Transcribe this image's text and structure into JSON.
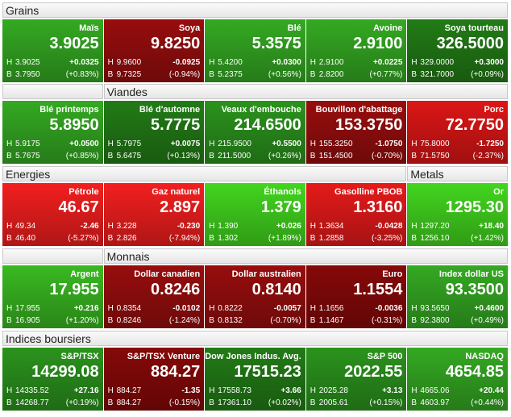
{
  "labels": {
    "high": "H",
    "low": "B"
  },
  "rows": [
    {
      "headers": [
        "Grains"
      ],
      "tiles": [
        {
          "name": "Maïs",
          "price": "3.9025",
          "high": "3.9025",
          "change": "+0.0325",
          "low": "3.7950",
          "pct": "(+0.83%)",
          "color": "#2f9a1f"
        },
        {
          "name": "Soya",
          "price": "9.8250",
          "high": "9.9600",
          "change": "-0.0925",
          "low": "9.7325",
          "pct": "(-0.94%)",
          "color": "#8a0c0c"
        },
        {
          "name": "Blé",
          "price": "5.3575",
          "high": "5.4200",
          "change": "+0.0300",
          "low": "5.2375",
          "pct": "(+0.56%)",
          "color": "#2f9a1f"
        },
        {
          "name": "Avoine",
          "price": "2.9100",
          "high": "2.9100",
          "change": "+0.0225",
          "low": "2.8200",
          "pct": "(+0.77%)",
          "color": "#2f9a1f"
        },
        {
          "name": "Soya tourteau",
          "price": "326.5000",
          "high": "329.0000",
          "change": "+0.3000",
          "low": "321.7000",
          "pct": "(+0.09%)",
          "color": "#1f7014"
        }
      ]
    },
    {
      "headers": [
        "Viandes"
      ],
      "tiles": [
        {
          "name": "Blé printemps",
          "price": "5.8950",
          "high": "5.9175",
          "change": "+0.0500",
          "low": "5.7675",
          "pct": "(+0.85%)",
          "color": "#2f9a1f"
        },
        {
          "name": "Blé d'automne",
          "price": "5.7775",
          "high": "5.7975",
          "change": "+0.0075",
          "low": "5.6475",
          "pct": "(+0.13%)",
          "color": "#1f7014"
        },
        {
          "name": "Veaux d'embouche",
          "price": "214.6500",
          "high": "215.9500",
          "change": "+0.5500",
          "low": "211.5000",
          "pct": "(+0.26%)",
          "color": "#27861a"
        },
        {
          "name": "Bouvillon d'abattage",
          "price": "153.3750",
          "high": "155.3250",
          "change": "-1.0750",
          "low": "151.4500",
          "pct": "(-0.70%)",
          "color": "#8a0c0c"
        },
        {
          "name": "Porc",
          "price": "72.7750",
          "high": "75.8000",
          "change": "-1.7250",
          "low": "71.5750",
          "pct": "(-2.37%)",
          "color": "#c81414"
        }
      ]
    },
    {
      "headers": [
        "Energies",
        "Metals"
      ],
      "tiles": [
        {
          "name": "Pétrole",
          "price": "46.67",
          "high": "49.34",
          "change": "-2.46",
          "low": "46.40",
          "pct": "(-5.27%)",
          "color": "#dc1c1c"
        },
        {
          "name": "Gaz naturel",
          "price": "2.897",
          "high": "3.228",
          "change": "-0.230",
          "low": "2.826",
          "pct": "(-7.94%)",
          "color": "#dc1c1c"
        },
        {
          "name": "Éthanols",
          "price": "1.379",
          "high": "1.390",
          "change": "+0.026",
          "low": "1.302",
          "pct": "(+1.89%)",
          "color": "#3cc21c"
        },
        {
          "name": "Gasolline PBOB",
          "price": "1.3160",
          "high": "1.3634",
          "change": "-0.0428",
          "low": "1.2858",
          "pct": "(-3.25%)",
          "color": "#d01818"
        },
        {
          "name": "Or",
          "price": "1295.30",
          "high": "1297.20",
          "change": "+18.40",
          "low": "1256.10",
          "pct": "(+1.42%)",
          "color": "#3cc21c"
        }
      ]
    },
    {
      "headers": [
        "Monnais"
      ],
      "tiles": [
        {
          "name": "Argent",
          "price": "17.955",
          "high": "17.955",
          "change": "+0.216",
          "low": "16.905",
          "pct": "(+1.20%)",
          "color": "#34a81e"
        },
        {
          "name": "Dollar canadien",
          "price": "0.8246",
          "high": "0.8354",
          "change": "-0.0102",
          "low": "0.8246",
          "pct": "(-1.24%)",
          "color": "#8a0c0c"
        },
        {
          "name": "Dollar australien",
          "price": "0.8140",
          "high": "0.8222",
          "change": "-0.0057",
          "low": "0.8132",
          "pct": "(-0.70%)",
          "color": "#8a0c0c"
        },
        {
          "name": "Euro",
          "price": "1.1554",
          "high": "1.1656",
          "change": "-0.0036",
          "low": "1.1467",
          "pct": "(-0.31%)",
          "color": "#7a0808"
        },
        {
          "name": "Index dollar US",
          "price": "93.3500",
          "high": "93.5650",
          "change": "+0.4600",
          "low": "92.3800",
          "pct": "(+0.49%)",
          "color": "#2f9a1f"
        }
      ]
    },
    {
      "headers": [
        "Indices boursiers"
      ],
      "tiles": [
        {
          "name": "S&P/TSX",
          "price": "14299.08",
          "high": "14335.52",
          "change": "+27.16",
          "low": "14268.77",
          "pct": "(+0.19%)",
          "color": "#27861a"
        },
        {
          "name": "S&P/TSX Venture",
          "price": "884.27",
          "high": "884.27",
          "change": "-1.35",
          "low": "884.27",
          "pct": "(-0.15%)",
          "color": "#7a0808"
        },
        {
          "name": "Dow Jones Indus. Avg.",
          "price": "17515.23",
          "high": "17558.73",
          "change": "+3.66",
          "low": "17361.10",
          "pct": "(+0.02%)",
          "color": "#1f7014"
        },
        {
          "name": "S&P 500",
          "price": "2022.55",
          "high": "2025.28",
          "change": "+3.13",
          "low": "2005.61",
          "pct": "(+0.15%)",
          "color": "#27861a"
        },
        {
          "name": "NASDAQ",
          "price": "4654.85",
          "high": "4665.06",
          "change": "+20.44",
          "low": "4603.97",
          "pct": "(+0.44%)",
          "color": "#2f9a1f"
        }
      ]
    }
  ]
}
